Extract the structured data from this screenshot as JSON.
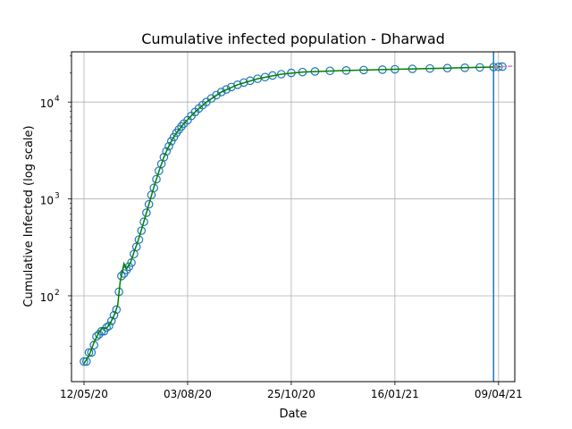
{
  "chart_data": {
    "type": "line",
    "title": "Cumulative infected population - Dharwad",
    "xlabel": "Date",
    "ylabel": "Cumulative Infected (log scale)",
    "yscale": "log",
    "ylim": [
      13,
      33000
    ],
    "xlim": [
      "2020-05-02",
      "2021-04-22"
    ],
    "x_ticks": [
      {
        "date": "2020-05-12",
        "label": "12/05/20"
      },
      {
        "date": "2020-08-03",
        "label": "03/08/20"
      },
      {
        "date": "2020-10-25",
        "label": "25/10/20"
      },
      {
        "date": "2021-01-16",
        "label": "16/01/21"
      },
      {
        "date": "2021-04-09",
        "label": "09/04/21"
      }
    ],
    "y_ticks": [
      {
        "value": 100,
        "base": "10",
        "exp": "2"
      },
      {
        "value": 1000,
        "base": "10",
        "exp": "3"
      },
      {
        "value": 10000,
        "base": "10",
        "exp": "4"
      }
    ],
    "grid": true,
    "vertical_marker": {
      "date": "2021-04-05",
      "color": "#1f77b4"
    },
    "colors": {
      "observed": "#1f77b4",
      "fit": "#008000",
      "projection": "#e377c2",
      "grid": "#b0b0b0"
    },
    "series": [
      {
        "marker": "open-circle",
        "color": "#1f77b4",
        "points": [
          [
            "2020-05-12",
            21
          ],
          [
            "2020-05-14",
            21
          ],
          [
            "2020-05-16",
            26
          ],
          [
            "2020-05-18",
            26
          ],
          [
            "2020-05-20",
            31
          ],
          [
            "2020-05-22",
            38
          ],
          [
            "2020-05-24",
            40
          ],
          [
            "2020-05-26",
            43
          ],
          [
            "2020-05-28",
            43
          ],
          [
            "2020-05-30",
            47
          ],
          [
            "2020-06-01",
            49
          ],
          [
            "2020-06-03",
            55
          ],
          [
            "2020-06-05",
            63
          ],
          [
            "2020-06-07",
            72
          ],
          [
            "2020-06-09",
            110
          ],
          [
            "2020-06-11",
            160
          ],
          [
            "2020-06-13",
            170
          ],
          [
            "2020-06-15",
            185
          ],
          [
            "2020-06-17",
            200
          ],
          [
            "2020-06-19",
            220
          ],
          [
            "2020-06-21",
            270
          ],
          [
            "2020-06-23",
            320
          ],
          [
            "2020-06-25",
            380
          ],
          [
            "2020-06-27",
            470
          ],
          [
            "2020-06-29",
            580
          ],
          [
            "2020-07-01",
            720
          ],
          [
            "2020-07-03",
            880
          ],
          [
            "2020-07-05",
            1100
          ],
          [
            "2020-07-07",
            1300
          ],
          [
            "2020-07-09",
            1600
          ],
          [
            "2020-07-11",
            1950
          ],
          [
            "2020-07-13",
            2300
          ],
          [
            "2020-07-15",
            2700
          ],
          [
            "2020-07-17",
            3100
          ],
          [
            "2020-07-19",
            3500
          ],
          [
            "2020-07-21",
            3950
          ],
          [
            "2020-07-23",
            4350
          ],
          [
            "2020-07-25",
            4800
          ],
          [
            "2020-07-27",
            5200
          ],
          [
            "2020-07-29",
            5600
          ],
          [
            "2020-07-31",
            6000
          ],
          [
            "2020-08-03",
            6500
          ],
          [
            "2020-08-06",
            7200
          ],
          [
            "2020-08-09",
            7900
          ],
          [
            "2020-08-12",
            8600
          ],
          [
            "2020-08-15",
            9300
          ],
          [
            "2020-08-18",
            10000
          ],
          [
            "2020-08-22",
            10900
          ],
          [
            "2020-08-26",
            11800
          ],
          [
            "2020-08-30",
            12700
          ],
          [
            "2020-09-03",
            13500
          ],
          [
            "2020-09-07",
            14300
          ],
          [
            "2020-09-12",
            15100
          ],
          [
            "2020-09-17",
            15900
          ],
          [
            "2020-09-22",
            16600
          ],
          [
            "2020-09-28",
            17400
          ],
          [
            "2020-10-04",
            18100
          ],
          [
            "2020-10-10",
            18800
          ],
          [
            "2020-10-17",
            19400
          ],
          [
            "2020-10-25",
            20000
          ],
          [
            "2020-11-03",
            20400
          ],
          [
            "2020-11-13",
            20700
          ],
          [
            "2020-11-25",
            21000
          ],
          [
            "2020-12-08",
            21200
          ],
          [
            "2020-12-22",
            21400
          ],
          [
            "2021-01-06",
            21600
          ],
          [
            "2021-01-16",
            21800
          ],
          [
            "2021-01-30",
            22000
          ],
          [
            "2021-02-13",
            22200
          ],
          [
            "2021-02-27",
            22400
          ],
          [
            "2021-03-13",
            22600
          ],
          [
            "2021-03-25",
            22800
          ],
          [
            "2021-04-05",
            23000
          ],
          [
            "2021-04-09",
            23100
          ],
          [
            "2021-04-12",
            23200
          ]
        ]
      },
      {
        "marker": "line",
        "color": "#008000",
        "points": [
          [
            "2020-05-12",
            20
          ],
          [
            "2020-05-16",
            24
          ],
          [
            "2020-05-20",
            33
          ],
          [
            "2020-05-24",
            42
          ],
          [
            "2020-05-27",
            47
          ],
          [
            "2020-05-30",
            46
          ],
          [
            "2020-06-02",
            52
          ],
          [
            "2020-06-05",
            62
          ],
          [
            "2020-06-08",
            80
          ],
          [
            "2020-06-10",
            140
          ],
          [
            "2020-06-13",
            215
          ],
          [
            "2020-06-15",
            190
          ],
          [
            "2020-06-18",
            215
          ],
          [
            "2020-06-21",
            280
          ],
          [
            "2020-06-24",
            360
          ],
          [
            "2020-06-27",
            480
          ],
          [
            "2020-06-30",
            650
          ],
          [
            "2020-07-03",
            880
          ],
          [
            "2020-07-06",
            1200
          ],
          [
            "2020-07-09",
            1600
          ],
          [
            "2020-07-12",
            2100
          ],
          [
            "2020-07-15",
            2700
          ],
          [
            "2020-07-18",
            3300
          ],
          [
            "2020-07-21",
            3950
          ],
          [
            "2020-07-25",
            4800
          ],
          [
            "2020-07-31",
            6000
          ],
          [
            "2020-08-09",
            7900
          ],
          [
            "2020-08-18",
            10000
          ],
          [
            "2020-08-30",
            12700
          ],
          [
            "2020-09-12",
            15100
          ],
          [
            "2020-09-28",
            17400
          ],
          [
            "2020-10-17",
            19400
          ],
          [
            "2020-11-03",
            20400
          ],
          [
            "2020-12-08",
            21200
          ],
          [
            "2021-01-16",
            21800
          ],
          [
            "2021-02-27",
            22400
          ],
          [
            "2021-04-05",
            23000
          ],
          [
            "2021-04-12",
            23200
          ]
        ]
      },
      {
        "marker": "dashed-line",
        "color": "#e377c2",
        "points": [
          [
            "2021-04-05",
            23050
          ],
          [
            "2021-04-09",
            23150
          ],
          [
            "2021-04-15",
            23350
          ],
          [
            "2021-04-20",
            23500
          ]
        ]
      }
    ]
  }
}
